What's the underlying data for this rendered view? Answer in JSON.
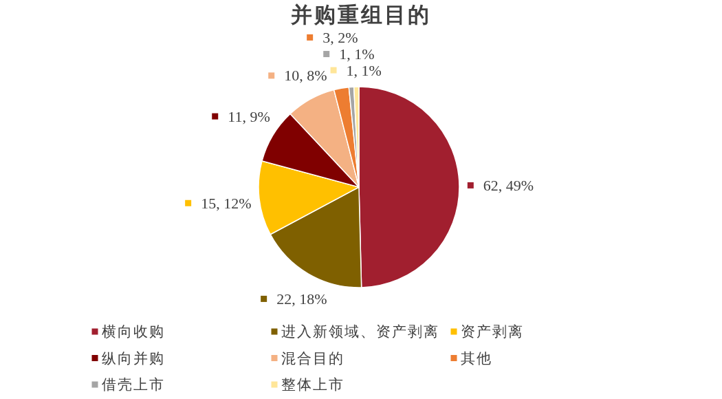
{
  "chart_data": {
    "type": "pie",
    "title": "并购重组目的",
    "categories": [
      "横向收购",
      "进入新领域、资产剥离",
      "资产剥离",
      "纵向并购",
      "混合目的",
      "其他",
      "借壳上市",
      "整体上市"
    ],
    "values": [
      62,
      22,
      15,
      11,
      10,
      3,
      1,
      1
    ],
    "colors": [
      "#a11f2f",
      "#7f6000",
      "#ffc000",
      "#800000",
      "#f4b183",
      "#ed7d31",
      "#a5a5a5",
      "#ffe699"
    ],
    "value_labels": [
      "62, 49%",
      "22, 18%",
      "15, 12%",
      "11, 9%",
      "10, 8%",
      "3, 2%",
      "1, 1%",
      "1, 1%"
    ],
    "legend": "bottom"
  }
}
